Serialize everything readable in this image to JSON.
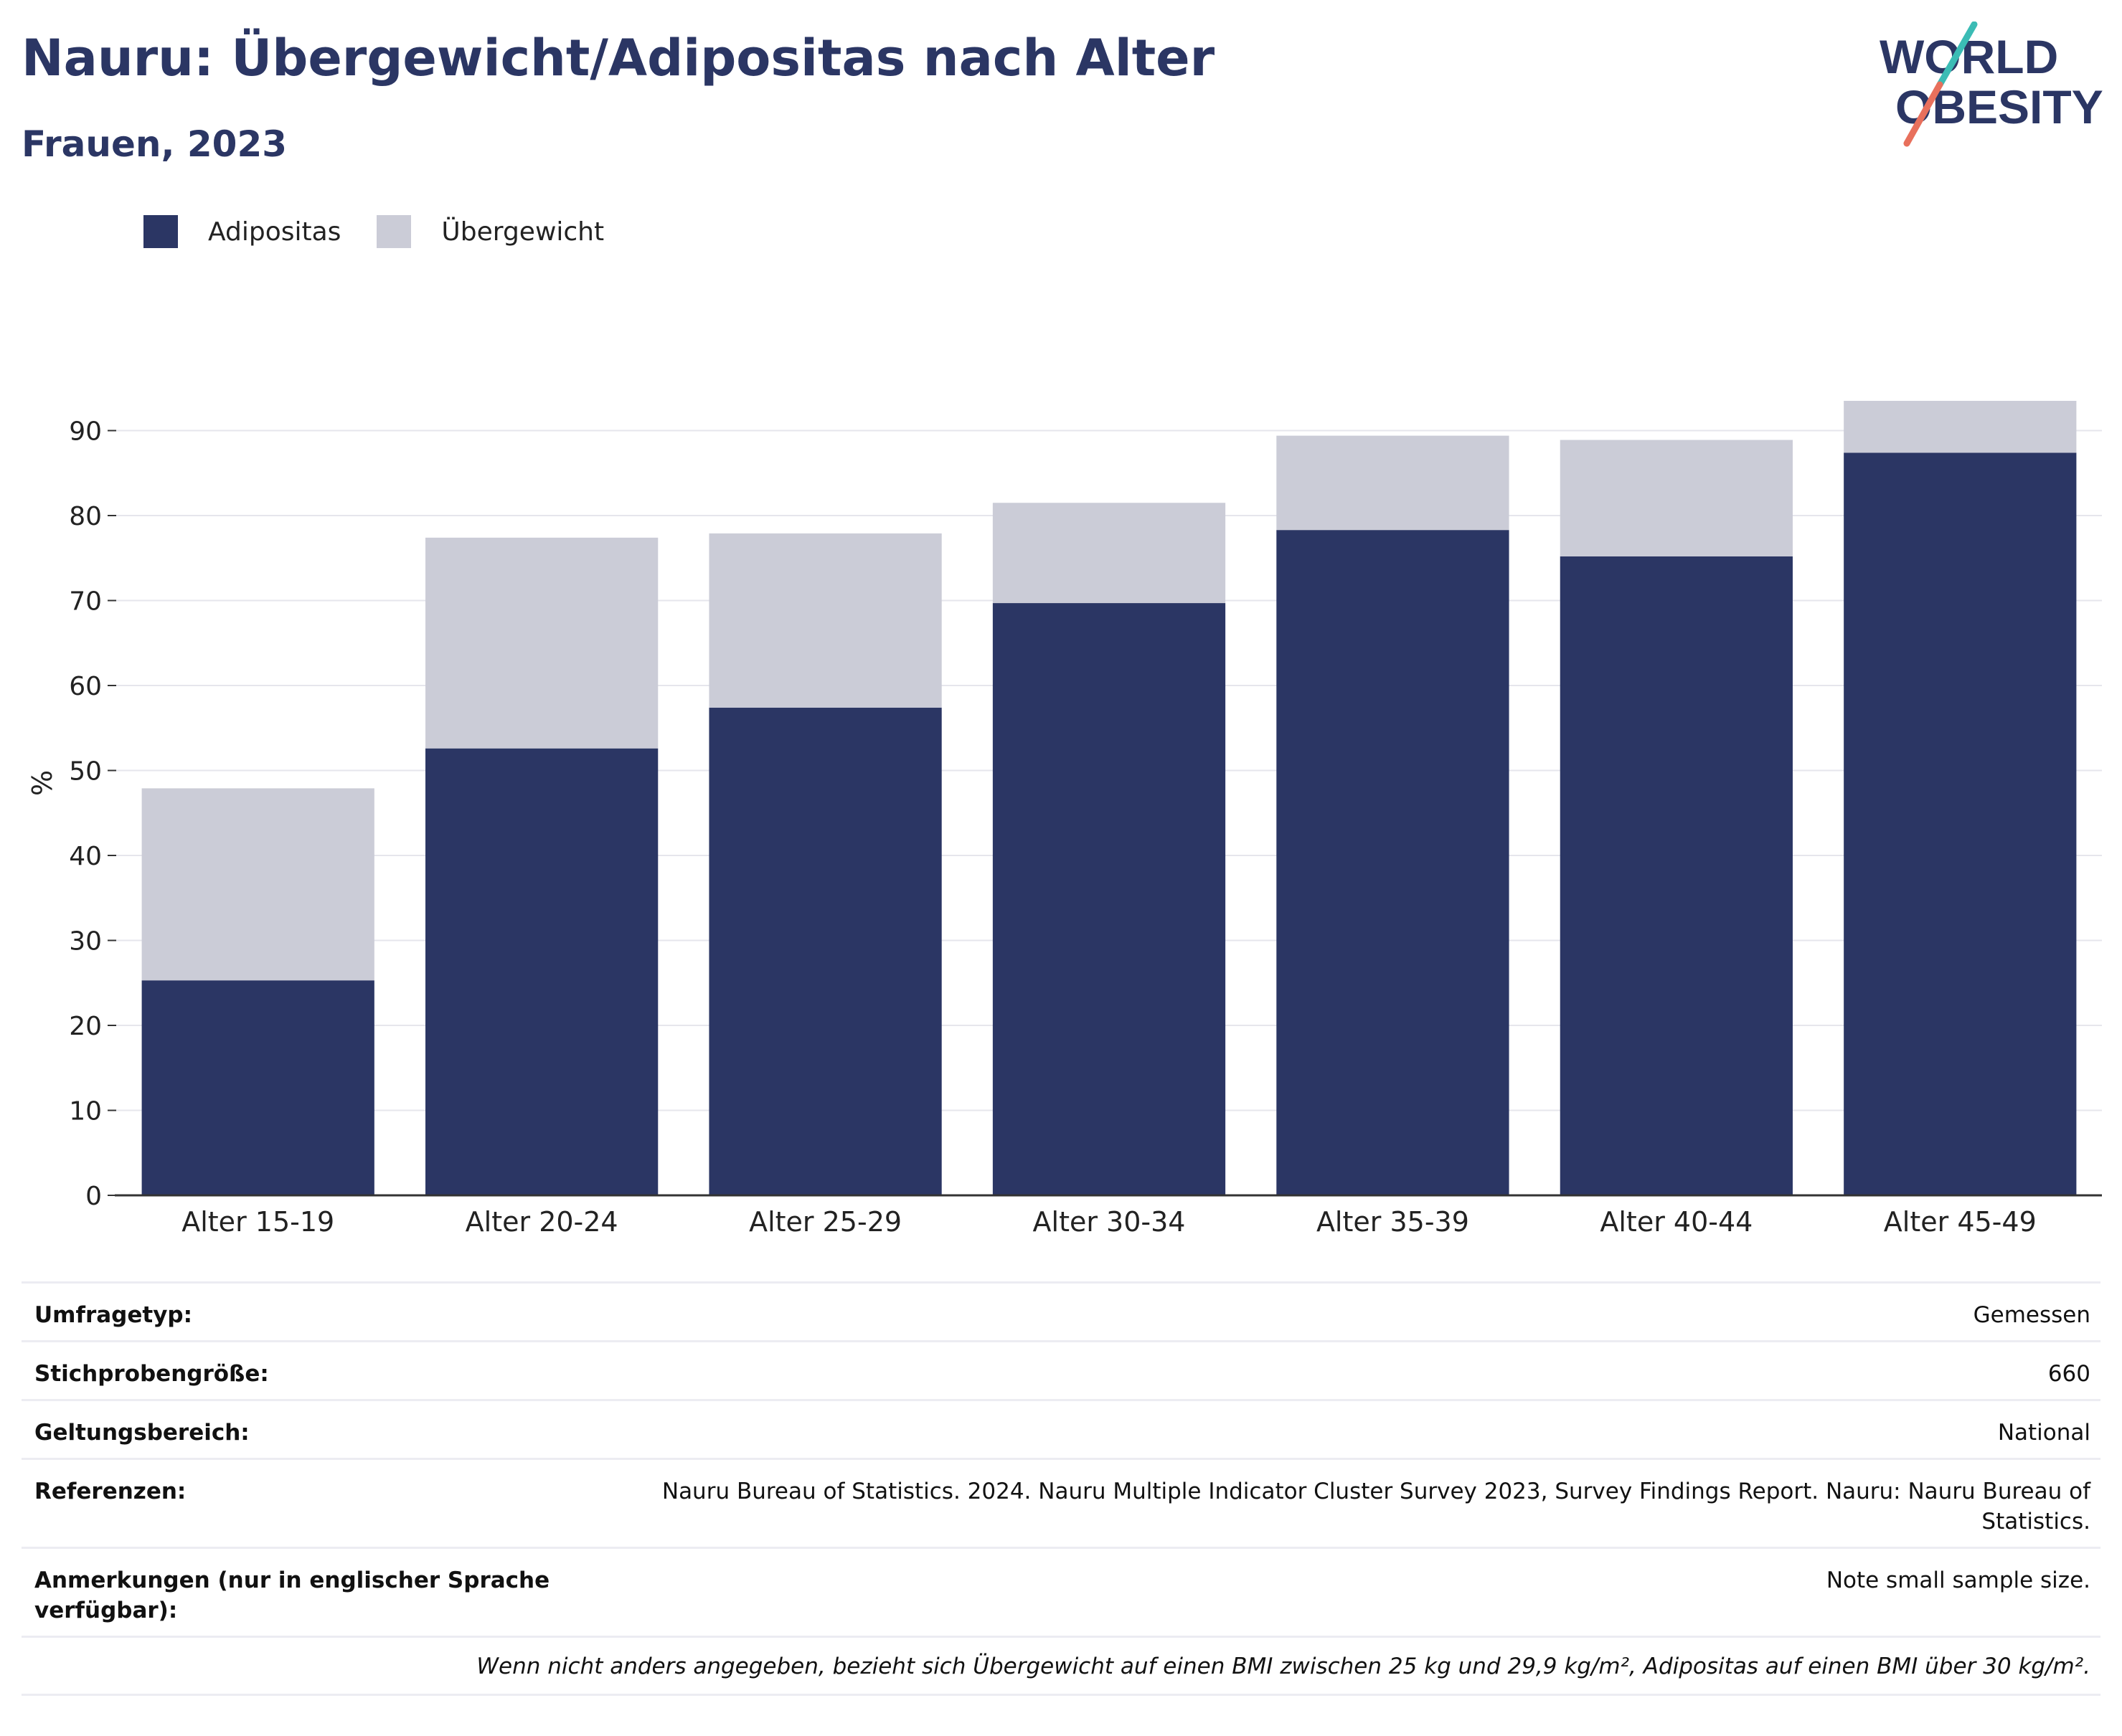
{
  "header": {
    "title": "Nauru: Übergewicht/Adipositas nach Alter",
    "subtitle": "Frauen, 2023",
    "logo_line1": "WORLD",
    "logo_line2": "OBESITY"
  },
  "legend": [
    {
      "label": "Adipositas",
      "color": "#2b3664"
    },
    {
      "label": "Übergewicht",
      "color": "#cbccd7"
    }
  ],
  "chart_data": {
    "type": "bar",
    "stacked": true,
    "categories": [
      "Alter 15-19",
      "Alter 20-24",
      "Alter 25-29",
      "Alter 30-34",
      "Alter 35-39",
      "Alter 40-44",
      "Alter 45-49"
    ],
    "series": [
      {
        "name": "Adipositas",
        "color": "#2b3664",
        "values": [
          25.3,
          52.6,
          57.4,
          69.7,
          78.3,
          75.2,
          87.4
        ]
      },
      {
        "name": "Übergewicht",
        "color": "#cbccd7",
        "values": [
          22.6,
          24.8,
          20.5,
          11.8,
          11.1,
          13.7,
          6.1
        ]
      }
    ],
    "ylabel": "%",
    "ylim": [
      0,
      95
    ],
    "yticks": [
      0,
      10,
      20,
      30,
      40,
      50,
      60,
      70,
      80,
      90
    ],
    "grid": true,
    "legend_position": "top-left"
  },
  "info": {
    "rows": [
      {
        "key": "Umfragetyp:",
        "value": "Gemessen"
      },
      {
        "key": "Stichprobengröße:",
        "value": "660"
      },
      {
        "key": "Geltungsbereich:",
        "value": "National"
      },
      {
        "key": "Referenzen:",
        "value": "Nauru Bureau of Statistics. 2024. Nauru Multiple Indicator Cluster Survey 2023, Survey Findings Report. Nauru: Nauru Bureau of Statistics."
      },
      {
        "key": "Anmerkungen (nur in englischer Sprache verfügbar):",
        "value": "Note small sample size."
      }
    ],
    "note": "Wenn nicht anders angegeben, bezieht sich Übergewicht auf einen BMI zwischen 25 kg und 29,9 kg/m², Adipositas auf einen BMI über 30 kg/m²."
  }
}
